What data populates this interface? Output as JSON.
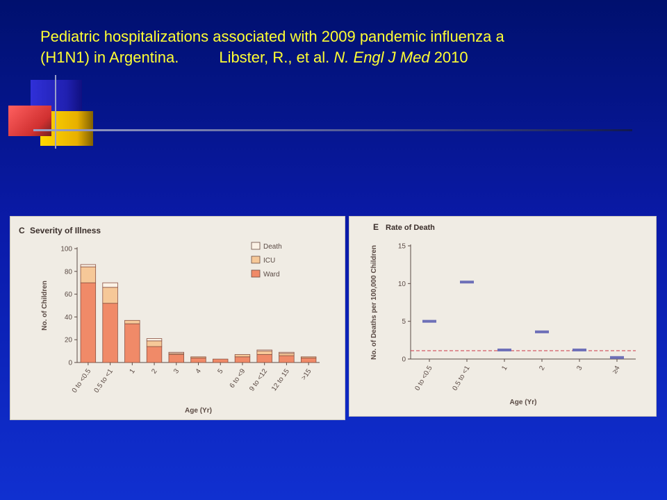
{
  "slide": {
    "title_line1": "Pediatric hospitalizations associated with 2009 pandemic influenza a",
    "title_line2_a": "(H1N1) in Argentina.",
    "title_line2_b": "Libster, R., et al. ",
    "title_line2_journal": "N. Engl J Med",
    "title_line2_year": " 2010"
  },
  "colors": {
    "background": "#0a1aa8",
    "title": "#ffff33",
    "ward": "#f08a68",
    "icu": "#f6c898",
    "death": "#fbf2e6",
    "death_marker": "#6e70b8",
    "reference_line": "#cc3344"
  },
  "chart_data": [
    {
      "panel_letter": "C",
      "title": "Severity of Illness",
      "type": "bar",
      "stacked": true,
      "xlabel": "Age (Yr)",
      "ylabel": "No. of Children",
      "ylim": [
        0,
        100
      ],
      "yticks": [
        0,
        20,
        40,
        60,
        80,
        100
      ],
      "categories": [
        "0 to <0.5",
        "0.5 to <1",
        "1",
        "2",
        "3",
        "4",
        "5",
        "6 to <9",
        "9 to <12",
        "12 to 15",
        ">15"
      ],
      "series": [
        {
          "name": "Ward",
          "color": "#f08a68",
          "values": [
            70,
            52,
            34,
            14,
            7,
            4,
            3,
            5,
            7,
            6,
            4
          ]
        },
        {
          "name": "ICU",
          "color": "#f6c898",
          "values": [
            14,
            14,
            3,
            5,
            1,
            1,
            0,
            2,
            3,
            2,
            1
          ]
        },
        {
          "name": "Death",
          "color": "#fbf2e6",
          "values": [
            2,
            4,
            0,
            2,
            1,
            0,
            0,
            0,
            1,
            1,
            0
          ]
        }
      ],
      "legend": [
        "Death",
        "ICU",
        "Ward"
      ],
      "legend_position": "top-right"
    },
    {
      "panel_letter": "E",
      "title": "Rate of Death",
      "type": "scatter",
      "xlabel": "Age (Yr)",
      "ylabel": "No. of Deaths per 100,000 Children",
      "ylim": [
        0,
        15
      ],
      "yticks": [
        0,
        5,
        10,
        15
      ],
      "categories": [
        "0 to <0.5",
        "0.5 to <1",
        "1",
        "2",
        "3",
        "≥4"
      ],
      "values": [
        5.0,
        10.2,
        1.2,
        3.6,
        1.2,
        0.2
      ],
      "reference_value": 1.1
    }
  ]
}
